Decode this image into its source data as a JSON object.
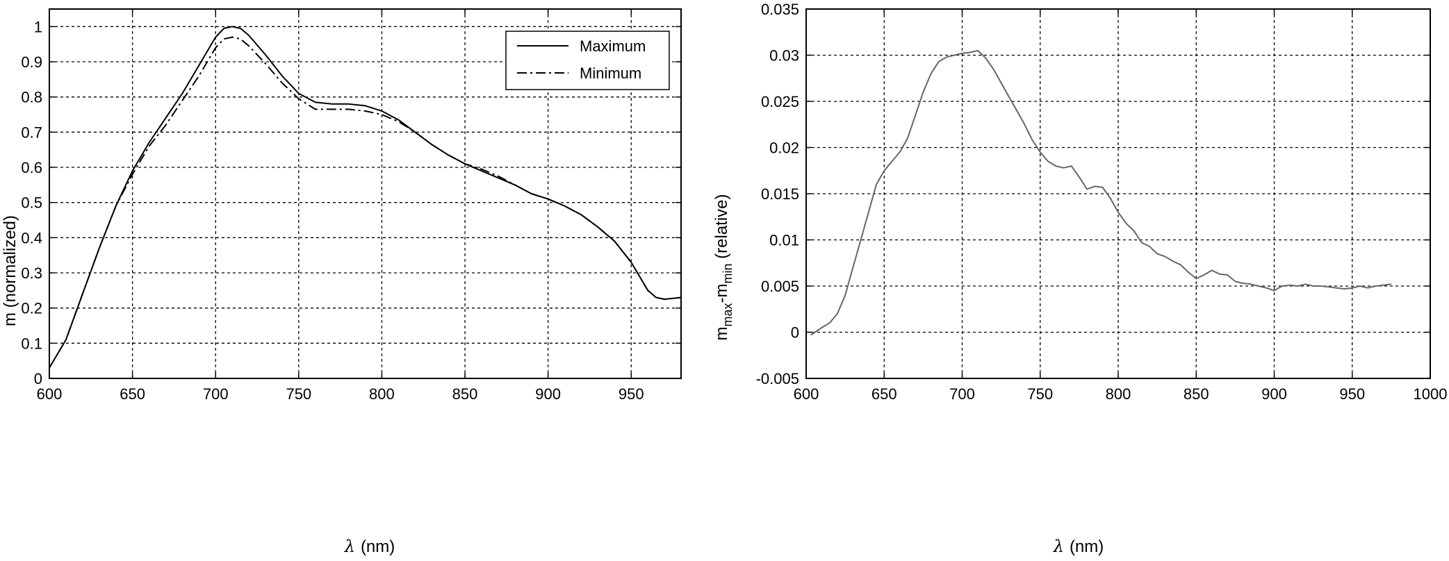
{
  "chart_data": [
    {
      "type": "line",
      "title": "",
      "xlabel_symbol": "λ",
      "xlabel_unit": "(nm)",
      "ylabel": "m (normalized)",
      "xlim": [
        600,
        980
      ],
      "ylim": [
        0,
        1.05
      ],
      "xticks": [
        600,
        650,
        700,
        750,
        800,
        850,
        900,
        950
      ],
      "yticks": [
        0,
        0.1,
        0.2,
        0.3,
        0.4,
        0.5,
        0.6,
        0.7,
        0.8,
        0.9,
        1
      ],
      "grid": true,
      "legend_position": "top-right",
      "series": [
        {
          "name": "Maximum",
          "style": "solid",
          "color": "#000000",
          "x": [
            600,
            610,
            620,
            630,
            640,
            650,
            660,
            670,
            680,
            690,
            700,
            705,
            710,
            715,
            720,
            730,
            740,
            750,
            760,
            770,
            780,
            790,
            800,
            810,
            820,
            830,
            840,
            850,
            860,
            870,
            880,
            890,
            900,
            910,
            920,
            930,
            940,
            950,
            960,
            965,
            970,
            980
          ],
          "y": [
            0.03,
            0.11,
            0.24,
            0.37,
            0.49,
            0.59,
            0.67,
            0.74,
            0.81,
            0.89,
            0.97,
            0.995,
            1.0,
            0.995,
            0.975,
            0.92,
            0.86,
            0.81,
            0.785,
            0.78,
            0.78,
            0.775,
            0.76,
            0.735,
            0.7,
            0.665,
            0.635,
            0.61,
            0.59,
            0.57,
            0.55,
            0.525,
            0.51,
            0.49,
            0.465,
            0.43,
            0.39,
            0.33,
            0.25,
            0.23,
            0.225,
            0.23
          ]
        },
        {
          "name": "Minimum",
          "style": "dashdot",
          "color": "#000000",
          "x": [
            600,
            610,
            620,
            630,
            640,
            650,
            660,
            670,
            680,
            690,
            700,
            705,
            710,
            715,
            720,
            730,
            740,
            750,
            760,
            770,
            780,
            790,
            800,
            810,
            820,
            830,
            840,
            850,
            860,
            870,
            880,
            890,
            900,
            910,
            920,
            930,
            940,
            950,
            960,
            965,
            970,
            980
          ],
          "y": [
            0.03,
            0.11,
            0.24,
            0.37,
            0.49,
            0.58,
            0.66,
            0.72,
            0.79,
            0.86,
            0.94,
            0.965,
            0.97,
            0.965,
            0.945,
            0.895,
            0.84,
            0.795,
            0.765,
            0.765,
            0.765,
            0.76,
            0.75,
            0.73,
            0.7,
            0.665,
            0.635,
            0.61,
            0.595,
            0.575,
            0.55,
            0.525,
            0.51,
            0.49,
            0.465,
            0.43,
            0.39,
            0.33,
            0.25,
            0.23,
            0.225,
            0.23
          ]
        }
      ]
    },
    {
      "type": "line",
      "title": "",
      "xlabel_symbol": "λ",
      "xlabel_unit": "(nm)",
      "ylabel_main": "m",
      "ylabel_sub1": "max",
      "ylabel_mid": "-m",
      "ylabel_sub2": "min",
      "ylabel_tail": " (relative)",
      "xlim": [
        600,
        1000
      ],
      "ylim": [
        -0.005,
        0.035
      ],
      "xticks": [
        600,
        650,
        700,
        750,
        800,
        850,
        900,
        950,
        1000
      ],
      "yticks": [
        -0.005,
        0,
        0.005,
        0.01,
        0.015,
        0.02,
        0.025,
        0.03,
        0.035
      ],
      "grid": true,
      "series": [
        {
          "style": "solid",
          "color": "#666666",
          "x": [
            603,
            610,
            615,
            620,
            625,
            630,
            635,
            640,
            645,
            650,
            655,
            660,
            665,
            670,
            675,
            680,
            685,
            690,
            695,
            700,
            705,
            710,
            715,
            720,
            725,
            730,
            735,
            740,
            745,
            750,
            755,
            760,
            765,
            770,
            775,
            780,
            785,
            790,
            795,
            800,
            805,
            810,
            815,
            820,
            825,
            830,
            835,
            840,
            845,
            850,
            855,
            860,
            865,
            870,
            875,
            880,
            885,
            890,
            895,
            900,
            905,
            910,
            915,
            920,
            925,
            930,
            935,
            940,
            945,
            950,
            955,
            960,
            965,
            970,
            975
          ],
          "y": [
            -0.0003,
            0.0005,
            0.001,
            0.002,
            0.004,
            0.007,
            0.01,
            0.013,
            0.016,
            0.0175,
            0.0185,
            0.0195,
            0.021,
            0.0235,
            0.026,
            0.028,
            0.0293,
            0.0298,
            0.03,
            0.0302,
            0.0303,
            0.0305,
            0.0297,
            0.0285,
            0.027,
            0.0255,
            0.024,
            0.0225,
            0.0208,
            0.0195,
            0.0185,
            0.018,
            0.0178,
            0.018,
            0.0168,
            0.0155,
            0.0158,
            0.0157,
            0.0145,
            0.013,
            0.0118,
            0.011,
            0.0097,
            0.0093,
            0.0085,
            0.0082,
            0.0077,
            0.0073,
            0.0065,
            0.0058,
            0.0062,
            0.0067,
            0.0063,
            0.0062,
            0.0055,
            0.0053,
            0.0052,
            0.005,
            0.0048,
            0.0045,
            0.005,
            0.0051,
            0.005,
            0.0052,
            0.005,
            0.005,
            0.0049,
            0.0048,
            0.0047,
            0.0048,
            0.005,
            0.0048,
            0.005,
            0.0051,
            0.0052
          ]
        }
      ]
    }
  ]
}
